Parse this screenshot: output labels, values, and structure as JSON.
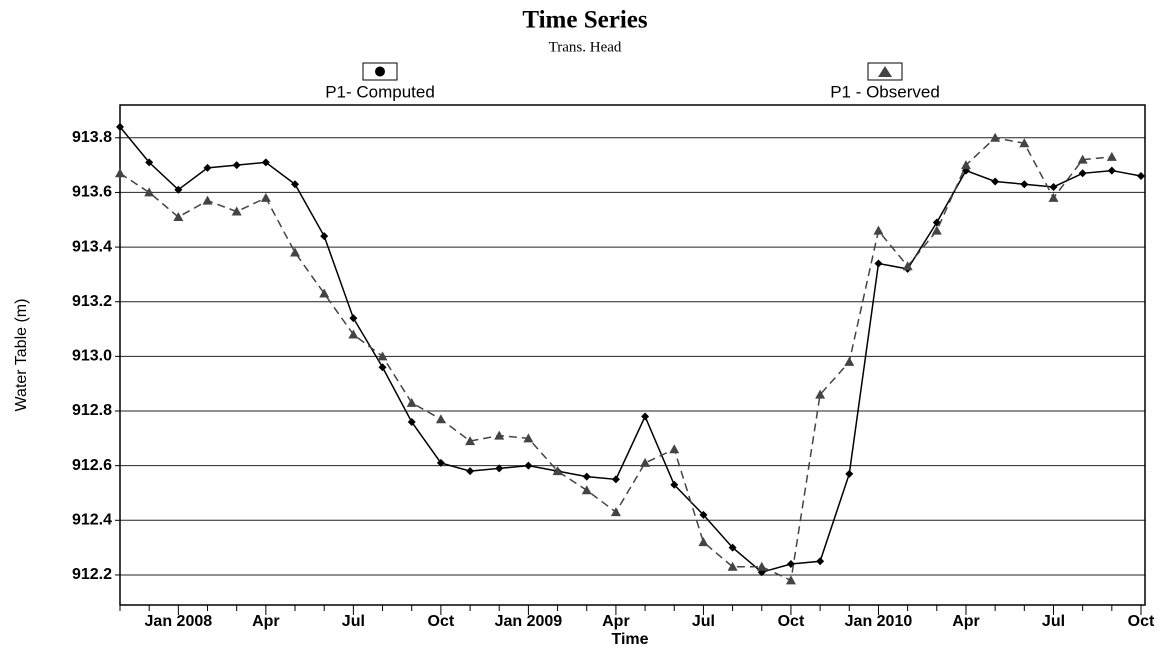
{
  "chart_data": {
    "type": "line",
    "title": "Time Series",
    "subtitle": "Trans. Head",
    "x_label": "Time",
    "y_label": "Water Table (m)",
    "categories": [
      null,
      null,
      "Jan 2008",
      null,
      null,
      "Apr",
      null,
      null,
      "Jul",
      null,
      null,
      "Oct",
      null,
      null,
      "Jan 2009",
      null,
      null,
      "Apr",
      null,
      null,
      "Jul",
      null,
      null,
      "Oct",
      null,
      null,
      "Jan 2010",
      null,
      null,
      "Apr",
      null,
      null,
      "Jul",
      null,
      null,
      "Oct"
    ],
    "series": [
      {
        "name": "P1- Computed",
        "color": "#000000",
        "marker": "diamond",
        "dash": false,
        "values": [
          913.84,
          913.71,
          913.61,
          913.69,
          913.7,
          913.71,
          913.63,
          913.44,
          913.14,
          912.96,
          912.76,
          912.61,
          912.58,
          912.59,
          912.6,
          912.58,
          912.56,
          912.55,
          912.78,
          912.53,
          912.42,
          912.3,
          912.21,
          912.24,
          912.25,
          912.57,
          913.34,
          913.32,
          913.49,
          913.68,
          913.64,
          913.63,
          913.62,
          913.67,
          913.68,
          913.66
        ]
      },
      {
        "name": "P1 - Observed",
        "color": "#444444",
        "marker": "triangle",
        "dash": true,
        "values": [
          913.67,
          913.6,
          913.51,
          913.57,
          913.53,
          913.58,
          913.38,
          913.23,
          913.08,
          913.0,
          912.83,
          912.77,
          912.69,
          912.71,
          912.7,
          912.58,
          912.51,
          912.43,
          912.61,
          912.66,
          912.32,
          912.23,
          912.23,
          912.18,
          912.86,
          912.98,
          913.46,
          913.33,
          913.46,
          913.7,
          913.8,
          913.78,
          913.58,
          913.72,
          913.73,
          null
        ]
      }
    ],
    "ylim": [
      912.09,
      913.92
    ],
    "yticks": [
      912.2,
      912.4,
      912.6,
      912.8,
      {
        "value": 913,
        "label": "913.0"
      },
      913.2,
      913.4,
      913.6,
      913.8
    ],
    "grid": true
  }
}
